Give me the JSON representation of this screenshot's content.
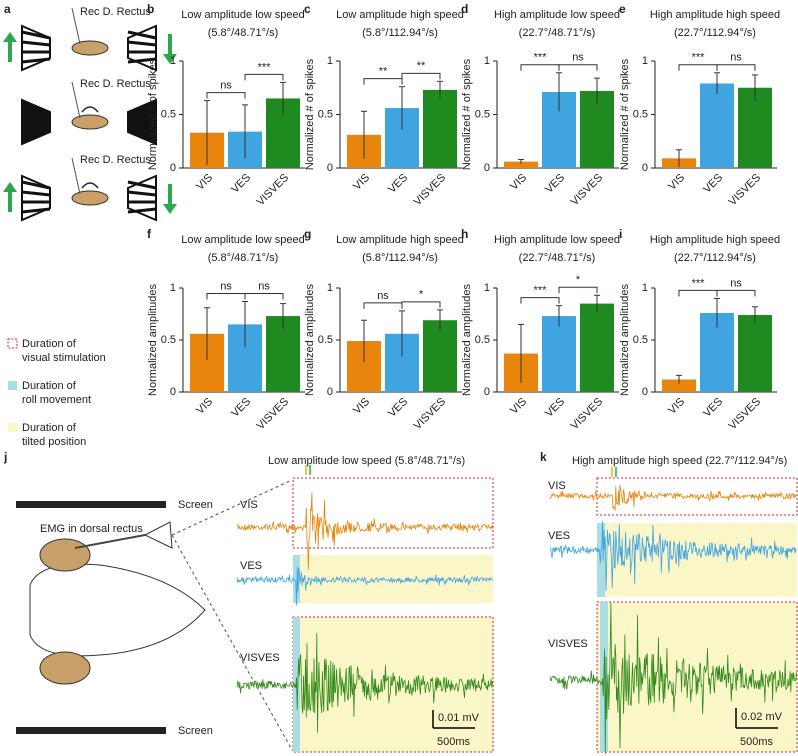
{
  "panel_a": {
    "label": "a",
    "recordings": [
      "Rec D. Rectus",
      "Rec D. Rectus",
      "Rec D. Rectus"
    ]
  },
  "legend": {
    "items": [
      [
        "Duration of",
        "visual stimulation"
      ],
      [
        "Duration of",
        "roll movement"
      ],
      [
        "Duration of",
        "tilted position"
      ]
    ]
  },
  "chart_data": [
    {
      "type": "bar",
      "label": "b",
      "title": "Low amplitude low speed",
      "subtitle": "(5.8°/48.71°/s)",
      "ylabel": "Normalized # of spikes",
      "categories": [
        "VIS",
        "VES",
        "VISVES"
      ],
      "values": [
        0.33,
        0.34,
        0.65
      ],
      "errors": [
        0.3,
        0.25,
        0.15
      ],
      "colors": [
        "#e8850c",
        "#3fa4e0",
        "#1f8a1f"
      ],
      "ylim": [
        0,
        1
      ],
      "yticks": [
        0,
        0.5,
        1
      ],
      "significance": [
        {
          "pair": [
            "VIS",
            "VES"
          ],
          "label": "ns"
        },
        {
          "pair": [
            "VES",
            "VISVES"
          ],
          "label": "***"
        }
      ]
    },
    {
      "type": "bar",
      "label": "c",
      "title": "Low amplitude high speed",
      "subtitle": "(5.8°/112.94°/s)",
      "ylabel": "Normalized # of spikes",
      "categories": [
        "VIS",
        "VES",
        "VISVES"
      ],
      "values": [
        0.31,
        0.56,
        0.73
      ],
      "errors": [
        0.22,
        0.2,
        0.08
      ],
      "colors": [
        "#e8850c",
        "#3fa4e0",
        "#1f8a1f"
      ],
      "ylim": [
        0,
        1
      ],
      "yticks": [
        0,
        0.5,
        1
      ],
      "significance": [
        {
          "pair": [
            "VIS",
            "VES"
          ],
          "label": "**"
        },
        {
          "pair": [
            "VES",
            "VISVES"
          ],
          "label": "**"
        }
      ]
    },
    {
      "type": "bar",
      "label": "d",
      "title": "High amplitude low speed",
      "subtitle": "(22.7°/48.71°/s)",
      "ylabel": "Normalized # of spikes",
      "categories": [
        "VIS",
        "VES",
        "VISVES"
      ],
      "values": [
        0.06,
        0.71,
        0.72
      ],
      "errors": [
        0.02,
        0.18,
        0.12
      ],
      "colors": [
        "#e8850c",
        "#3fa4e0",
        "#1f8a1f"
      ],
      "ylim": [
        0,
        1
      ],
      "yticks": [
        0,
        0.5,
        1
      ],
      "significance": [
        {
          "pair": [
            "VIS",
            "VES"
          ],
          "label": "***"
        },
        {
          "pair": [
            "VES",
            "VISVES"
          ],
          "label": "ns"
        }
      ]
    },
    {
      "type": "bar",
      "label": "e",
      "title": "High amplitude high speed",
      "subtitle": "(22.7°/112.94°/s)",
      "ylabel": "Normalized # of spikes",
      "categories": [
        "VIS",
        "VES",
        "VISVES"
      ],
      "values": [
        0.09,
        0.79,
        0.75
      ],
      "errors": [
        0.08,
        0.1,
        0.12
      ],
      "colors": [
        "#e8850c",
        "#3fa4e0",
        "#1f8a1f"
      ],
      "ylim": [
        0,
        1
      ],
      "yticks": [
        0,
        0.5,
        1
      ],
      "significance": [
        {
          "pair": [
            "VIS",
            "VES"
          ],
          "label": "***"
        },
        {
          "pair": [
            "VES",
            "VISVES"
          ],
          "label": "ns"
        }
      ]
    },
    {
      "type": "bar",
      "label": "f",
      "title": "Low amplitude low speed",
      "subtitle": "(5.8°/48.71°/s)",
      "ylabel": "Normalized amplitudes",
      "categories": [
        "VIS",
        "VES",
        "VISVES"
      ],
      "values": [
        0.56,
        0.65,
        0.73
      ],
      "errors": [
        0.25,
        0.22,
        0.12
      ],
      "colors": [
        "#e8850c",
        "#3fa4e0",
        "#1f8a1f"
      ],
      "ylim": [
        0,
        1
      ],
      "yticks": [
        0,
        0.5,
        1
      ],
      "significance": [
        {
          "pair": [
            "VIS",
            "VES"
          ],
          "label": "ns"
        },
        {
          "pair": [
            "VES",
            "VISVES"
          ],
          "label": "ns"
        }
      ]
    },
    {
      "type": "bar",
      "label": "g",
      "title": "Low amplitude high speed",
      "subtitle": "(5.8°/112.94°/s)",
      "ylabel": "Normalized amplitudes",
      "categories": [
        "VIS",
        "VES",
        "VISVES"
      ],
      "values": [
        0.49,
        0.56,
        0.69
      ],
      "errors": [
        0.2,
        0.22,
        0.1
      ],
      "colors": [
        "#e8850c",
        "#3fa4e0",
        "#1f8a1f"
      ],
      "ylim": [
        0,
        1
      ],
      "yticks": [
        0,
        0.5,
        1
      ],
      "significance": [
        {
          "pair": [
            "VIS",
            "VES"
          ],
          "label": "ns"
        },
        {
          "pair": [
            "VES",
            "VISVES"
          ],
          "label": "*"
        }
      ]
    },
    {
      "type": "bar",
      "label": "h",
      "title": "High amplitude low speed",
      "subtitle": "(22.7°/48.71°/s)",
      "ylabel": "Normalized amplitudes",
      "categories": [
        "VIS",
        "VES",
        "VISVES"
      ],
      "values": [
        0.37,
        0.73,
        0.85
      ],
      "errors": [
        0.28,
        0.1,
        0.08
      ],
      "colors": [
        "#e8850c",
        "#3fa4e0",
        "#1f8a1f"
      ],
      "ylim": [
        0,
        1
      ],
      "yticks": [
        0,
        0.5,
        1
      ],
      "significance": [
        {
          "pair": [
            "VIS",
            "VES"
          ],
          "label": "***"
        },
        {
          "pair": [
            "VES",
            "VISVES"
          ],
          "label": "*"
        }
      ]
    },
    {
      "type": "bar",
      "label": "i",
      "title": "High amplitude high speed",
      "subtitle": "(22.7°/112.94°/s)",
      "ylabel": "Normalized amplitudes",
      "categories": [
        "VIS",
        "VES",
        "VISVES"
      ],
      "values": [
        0.12,
        0.76,
        0.74
      ],
      "errors": [
        0.04,
        0.14,
        0.08
      ],
      "colors": [
        "#e8850c",
        "#3fa4e0",
        "#1f8a1f"
      ],
      "ylim": [
        0,
        1
      ],
      "yticks": [
        0,
        0.5,
        1
      ],
      "significance": [
        {
          "pair": [
            "VIS",
            "VES"
          ],
          "label": "***"
        },
        {
          "pair": [
            "VES",
            "VISVES"
          ],
          "label": "ns"
        }
      ]
    }
  ],
  "panel_j": {
    "label": "j",
    "title": "Low amplitude low speed (5.8°/48.71°/s)",
    "screens": [
      "Screen",
      "Screen"
    ],
    "emg": "EMG in dorsal rectus",
    "traces": [
      "VIS",
      "VES",
      "VISVES"
    ],
    "scale_v": "0.01 mV",
    "scale_t": "500ms"
  },
  "panel_k": {
    "label": "k",
    "title": "High amplitude high speed (22.7°/112.94°/s)",
    "traces": [
      "VIS",
      "VES",
      "VISVES"
    ],
    "scale_v": "0.02 mV",
    "scale_t": "500ms"
  }
}
